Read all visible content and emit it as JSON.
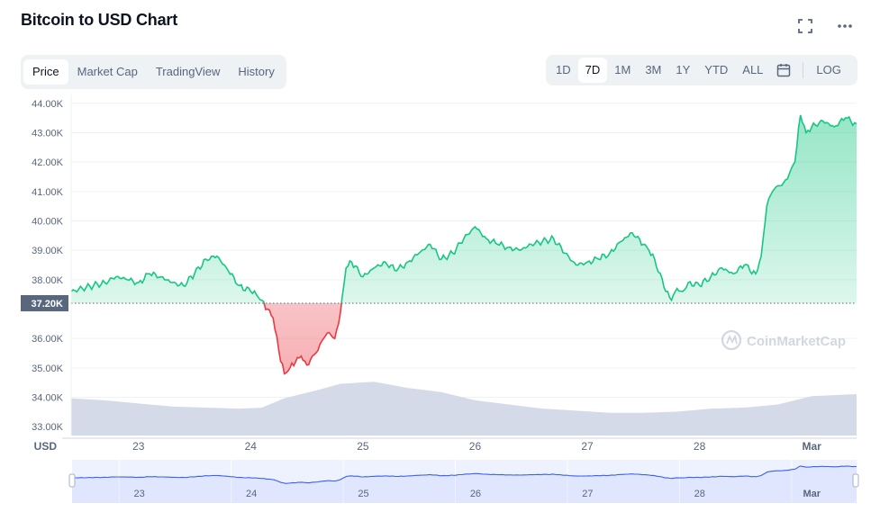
{
  "header": {
    "title": "Bitcoin to USD Chart"
  },
  "tabs": [
    {
      "label": "Price",
      "active": true
    },
    {
      "label": "Market Cap",
      "active": false
    },
    {
      "label": "TradingView",
      "active": false
    },
    {
      "label": "History",
      "active": false
    }
  ],
  "ranges": [
    {
      "label": "1D",
      "active": false
    },
    {
      "label": "7D",
      "active": true
    },
    {
      "label": "1M",
      "active": false
    },
    {
      "label": "3M",
      "active": false
    },
    {
      "label": "1Y",
      "active": false
    },
    {
      "label": "YTD",
      "active": false
    },
    {
      "label": "ALL",
      "active": false
    }
  ],
  "log_label": "LOG",
  "icons": {
    "fullscreen": "fullscreen-icon",
    "more": "more-icon",
    "calendar": "calendar-icon"
  },
  "watermark": "CoinMarketCap",
  "colors": {
    "up": "#16c784",
    "down": "#ea3943",
    "volume": "#cfd6e4",
    "navigator": "#3861fb"
  },
  "chart_data": {
    "type": "area",
    "ylabel": "USD",
    "ylim": [
      32700,
      44300
    ],
    "y_ticks": [
      "44.00K",
      "43.00K",
      "42.00K",
      "41.00K",
      "40.00K",
      "39.00K",
      "38.00K",
      "37.20K",
      "36.00K",
      "35.00K",
      "34.00K",
      "33.00K"
    ],
    "x_ticks": [
      "23",
      "24",
      "25",
      "26",
      "27",
      "28",
      "Mar"
    ],
    "x_tick_positions": [
      23,
      24,
      25,
      26,
      27,
      28,
      29
    ],
    "reference_value": 37200,
    "reference_label": "37.20K",
    "series": [
      {
        "x": [
          22.4,
          22.5,
          22.6,
          22.7,
          22.8,
          22.9,
          23.0,
          23.1,
          23.2,
          23.3,
          23.4,
          23.5,
          23.6,
          23.7,
          23.8,
          23.9,
          24.0,
          24.05,
          24.1,
          24.15,
          24.2,
          24.25,
          24.3,
          24.35,
          24.4,
          24.45,
          24.5,
          24.55,
          24.6,
          24.65,
          24.7,
          24.75,
          24.8,
          24.85,
          24.9,
          25.0,
          25.1,
          25.2,
          25.3,
          25.4,
          25.5,
          25.6,
          25.7,
          25.8,
          25.9,
          26.0,
          26.1,
          26.2,
          26.3,
          26.4,
          26.5,
          26.6,
          26.7,
          26.8,
          26.9,
          27.0,
          27.1,
          27.2,
          27.3,
          27.4,
          27.5,
          27.55,
          27.6,
          27.7,
          27.75,
          27.8,
          27.85,
          27.9,
          28.0,
          28.1,
          28.2,
          28.3,
          28.4,
          28.5,
          28.55,
          28.6,
          28.65,
          28.7,
          28.75,
          28.8,
          28.85,
          28.9,
          28.95,
          29.0,
          29.1,
          29.2,
          29.3,
          29.4
        ],
        "y": [
          37600,
          37700,
          37800,
          37900,
          38100,
          38000,
          37900,
          38200,
          38100,
          37900,
          37800,
          38200,
          38700,
          38800,
          38300,
          37800,
          37600,
          37500,
          37300,
          37000,
          36700,
          35600,
          34800,
          35000,
          35200,
          35400,
          35100,
          35400,
          35600,
          36000,
          36200,
          36000,
          36900,
          38400,
          38600,
          38100,
          38400,
          38600,
          38300,
          38600,
          38900,
          39200,
          38700,
          38900,
          39400,
          39800,
          39400,
          39200,
          39100,
          39000,
          39200,
          39300,
          39400,
          38900,
          38500,
          38600,
          38700,
          38900,
          39300,
          39600,
          39200,
          39000,
          38700,
          37600,
          37300,
          37700,
          37600,
          37900,
          37800,
          38100,
          38400,
          38200,
          38500,
          38200,
          38800,
          40500,
          41000,
          41200,
          41300,
          41600,
          42000,
          43600,
          43000,
          43200,
          43400,
          43200,
          43500,
          43300
        ]
      }
    ],
    "volume": {
      "x": [
        22.4,
        22.7,
        23.0,
        23.3,
        23.6,
        23.9,
        24.1,
        24.3,
        24.6,
        24.8,
        25.1,
        25.4,
        25.7,
        26.0,
        26.3,
        26.6,
        26.9,
        27.2,
        27.5,
        27.8,
        28.1,
        28.4,
        28.7,
        29.0,
        29.4
      ],
      "relative": [
        0.36,
        0.34,
        0.31,
        0.28,
        0.27,
        0.26,
        0.27,
        0.36,
        0.44,
        0.5,
        0.52,
        0.46,
        0.42,
        0.34,
        0.3,
        0.26,
        0.24,
        0.22,
        0.22,
        0.23,
        0.26,
        0.27,
        0.3,
        0.38,
        0.4
      ]
    },
    "navigator": {
      "x_ticks": [
        "23",
        "24",
        "25",
        "26",
        "27",
        "28",
        "Mar"
      ]
    }
  }
}
